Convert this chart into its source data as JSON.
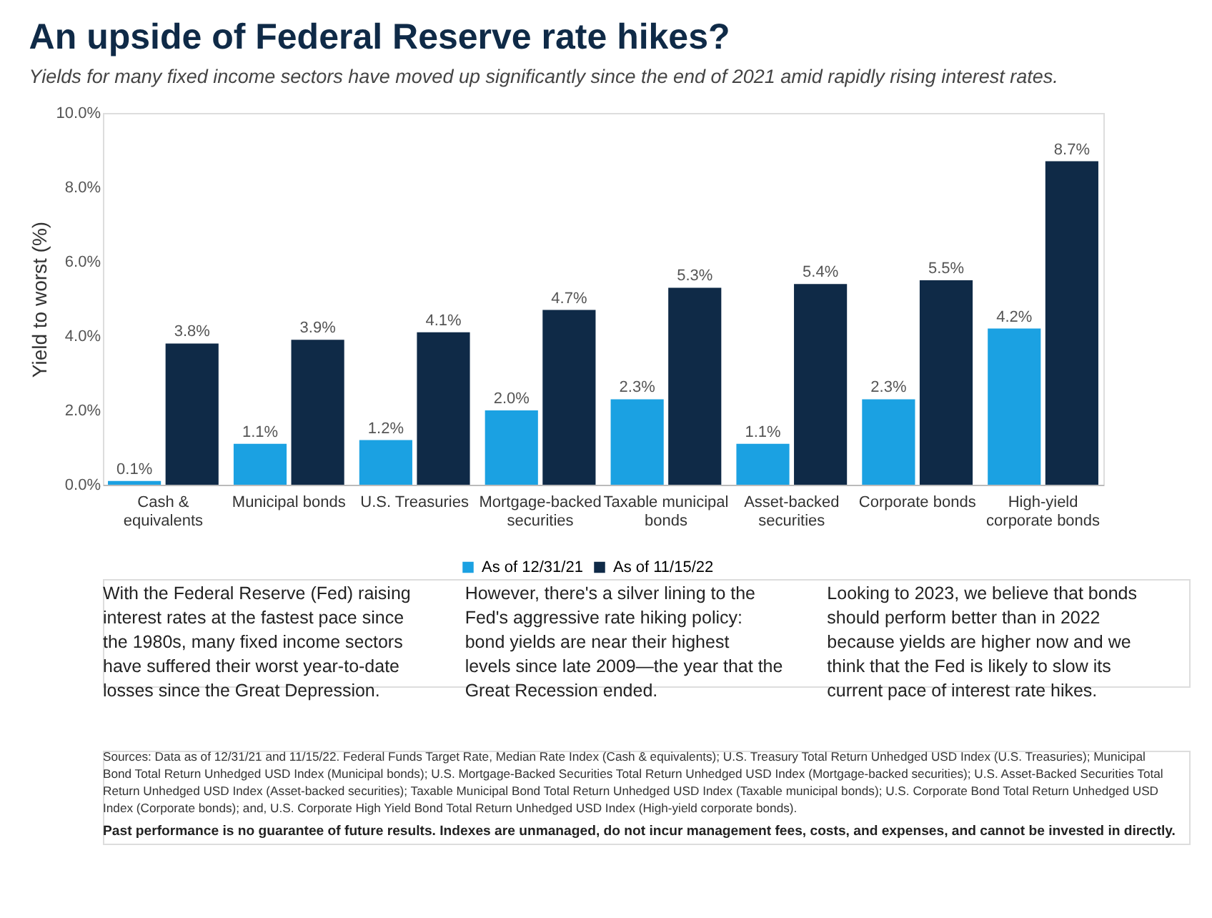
{
  "chart_data": {
    "type": "bar",
    "title": "An upside of Federal Reserve rate hikes?",
    "subtitle": "Yields for many fixed income sectors have moved up significantly since the end of 2021 amid rapidly rising interest rates.",
    "ylabel": "Yield to worst (%)",
    "categories": [
      "Cash & equivalents",
      "Municipal bonds",
      "U.S. Treasuries",
      "Mortgage-backed securities",
      "Taxable municipal bonds",
      "Asset-backed securities",
      "Corporate bonds",
      "High-yield corporate bonds"
    ],
    "series": [
      {
        "name": "As of 12/31/21",
        "color": "#1ba1e2",
        "values": [
          0.1,
          1.1,
          1.2,
          2.0,
          2.3,
          1.1,
          2.3,
          4.2
        ],
        "value_labels": [
          "0.1%",
          "1.1%",
          "1.2%",
          "2.0%",
          "2.3%",
          "1.1%",
          "2.3%",
          "4.2%"
        ]
      },
      {
        "name": "As of 11/15/22",
        "color": "#0f2a47",
        "values": [
          3.8,
          3.9,
          4.1,
          4.7,
          5.3,
          5.4,
          5.5,
          8.7
        ],
        "value_labels": [
          "3.8%",
          "3.9%",
          "4.1%",
          "4.7%",
          "5.3%",
          "5.4%",
          "5.5%",
          "8.7%"
        ]
      }
    ],
    "ylim": [
      0,
      10
    ],
    "yticks": [
      {
        "value": 0,
        "label": "0.0%"
      },
      {
        "value": 2,
        "label": "2.0%"
      },
      {
        "value": 4,
        "label": "4.0%"
      },
      {
        "value": 6,
        "label": "6.0%"
      },
      {
        "value": 8,
        "label": "8.0%"
      },
      {
        "value": 10,
        "label": "10.0%"
      }
    ],
    "legend": "bottom",
    "annotations": [
      "With the Federal Reserve (Fed) raising interest rates at the fastest pace since the 1980s, many fixed income sectors have suffered their worst year-to-date losses since the Great Depression.",
      "However, there's a silver lining to the Fed's aggressive rate hiking policy: bond yields are near their highest levels since late 2009—the year that the Great Recession ended.",
      "Looking to 2023, we believe that bonds should perform better than in 2022 because yields are higher now and we think that the Fed is likely to slow its current pace of interest rate hikes.",
      "Sources: Data as of 12/31/21 and 11/15/22. Federal Funds Target Rate, Median Rate Index (Cash & equivalents); U.S. Treasury Total Return Unhedged USD Index (U.S. Treasuries); Municipal Bond Total Return Unhedged USD Index (Municipal bonds); U.S. Mortgage-Backed Securities Total Return Unhedged USD Index (Mortgage-backed securities); U.S. Asset-Backed Securities Total Return Unhedged USD Index (Asset-backed securities); Taxable Municipal Bond Total Return Unhedged USD Index (Taxable municipal bonds); U.S. Corporate Bond Total Return Unhedged USD Index (Corporate bonds); and, U.S. Corporate High Yield Bond Total Return Unhedged USD Index (High-yield corporate bonds).",
      "Past performance is no guarantee of future results. Indexes are unmanaged, do not incur management fees, costs, and expenses, and cannot be invested in directly."
    ]
  }
}
